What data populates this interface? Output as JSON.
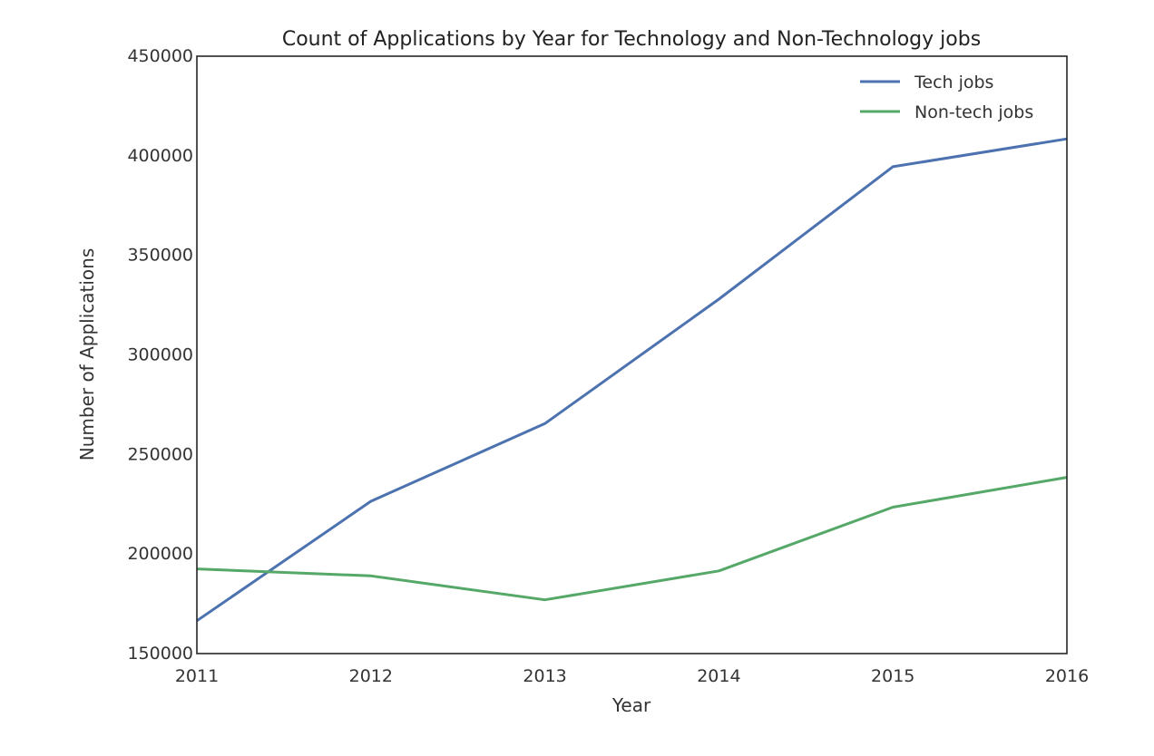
{
  "chart_data": {
    "type": "line",
    "title": "Count of Applications by Year for Technology and Non-Technology jobs",
    "xlabel": "Year",
    "ylabel": "Number of Applications",
    "x": [
      2011,
      2012,
      2013,
      2014,
      2015,
      2016
    ],
    "xlim": [
      2011,
      2016
    ],
    "ylim": [
      150000,
      450000
    ],
    "x_ticks": [
      "2011",
      "2012",
      "2013",
      "2014",
      "2015",
      "2016"
    ],
    "y_ticks": [
      "150000",
      "200000",
      "250000",
      "300000",
      "350000",
      "400000",
      "450000"
    ],
    "grid": false,
    "legend_position": "top-right",
    "series": [
      {
        "name": "Tech jobs",
        "color": "#4c72b0",
        "values": [
          166500,
          226500,
          265500,
          328000,
          394500,
          408500
        ]
      },
      {
        "name": "Non-tech jobs",
        "color": "#55a868",
        "values": [
          192500,
          189000,
          177000,
          191500,
          223500,
          238500
        ]
      }
    ]
  }
}
